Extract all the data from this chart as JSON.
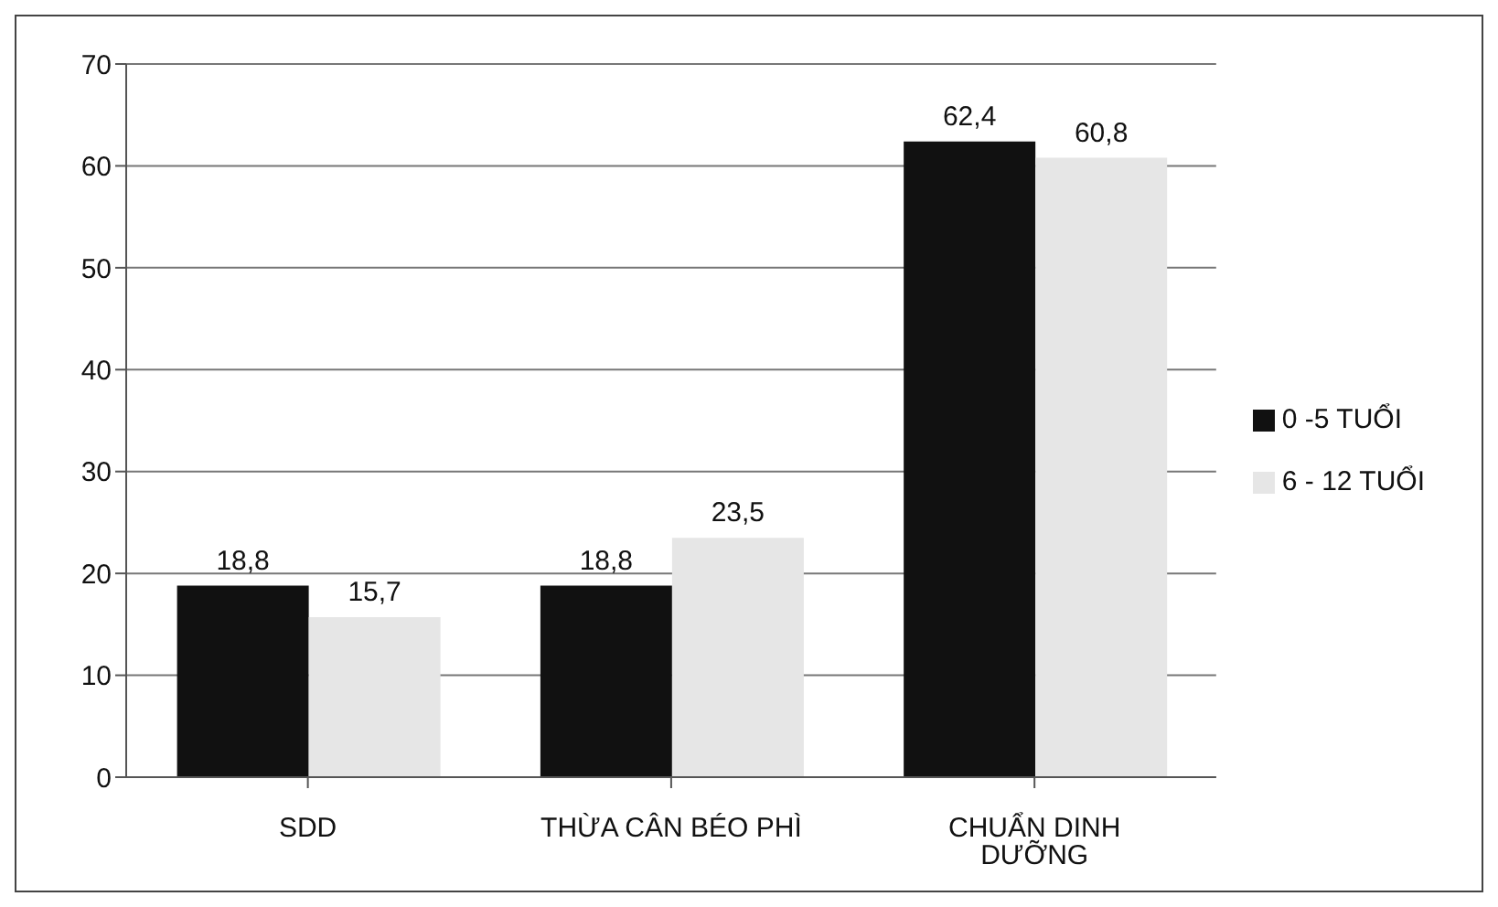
{
  "chart_data": {
    "type": "bar",
    "categories": [
      "SDD",
      "THỪA CÂN BÉO PHÌ",
      "CHUẨN DINH DƯỠNG"
    ],
    "series": [
      {
        "name": "0 -5 TUỔI",
        "color": "#111111",
        "values": [
          18.8,
          18.8,
          62.4
        ],
        "value_labels": [
          "18,8",
          "18,8",
          "62,4"
        ]
      },
      {
        "name": "6 - 12 TUỔI",
        "color": "#e6e6e6",
        "values": [
          15.7,
          23.5,
          60.8
        ],
        "value_labels": [
          "15,7",
          "23,5",
          "60,8"
        ]
      }
    ],
    "ylim": [
      0,
      70
    ],
    "yticks": [
      0,
      10,
      20,
      30,
      40,
      50,
      60,
      70
    ],
    "grid": "y",
    "legend": "right"
  }
}
